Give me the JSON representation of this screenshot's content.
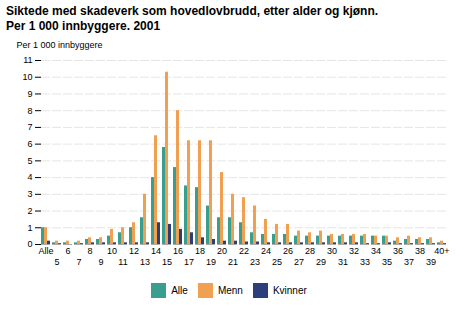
{
  "chart_data": {
    "type": "bar",
    "title": "Siktede med skadeverk som hovedlovbrudd, etter alder og kjønn.",
    "subtitle": "Per 1 000 innbyggere. 2001",
    "ylabel": "Per 1 000 innbyggere",
    "categories": [
      "Alle",
      "5",
      "6",
      "7",
      "8",
      "9",
      "10",
      "11",
      "12",
      "13",
      "14",
      "15",
      "16",
      "17",
      "18",
      "19",
      "20",
      "21",
      "22",
      "23",
      "24",
      "25",
      "26",
      "27",
      "28",
      "29",
      "30",
      "31",
      "32",
      "33",
      "34",
      "35",
      "36",
      "37",
      "38",
      "39",
      "40+"
    ],
    "series": [
      {
        "name": "Alle",
        "color": "#3a9e8f",
        "values": [
          1.0,
          0.1,
          0.1,
          0.1,
          0.3,
          0.3,
          0.5,
          0.7,
          1.0,
          1.6,
          4.0,
          5.8,
          4.6,
          3.5,
          3.4,
          2.3,
          1.6,
          1.6,
          1.3,
          0.7,
          0.6,
          0.6,
          0.6,
          0.5,
          0.5,
          0.5,
          0.5,
          0.5,
          0.5,
          0.5,
          0.5,
          0.5,
          0.2,
          0.3,
          0.3,
          0.3,
          0.1
        ]
      },
      {
        "name": "Menn",
        "color": "#f0a050",
        "values": [
          1.0,
          0.2,
          0.2,
          0.2,
          0.4,
          0.4,
          0.9,
          1.0,
          1.3,
          3.0,
          6.5,
          10.3,
          8.0,
          6.2,
          6.2,
          6.2,
          4.3,
          3.0,
          2.8,
          2.3,
          1.5,
          1.2,
          1.2,
          0.8,
          0.7,
          0.8,
          0.6,
          0.6,
          0.6,
          0.6,
          0.5,
          0.5,
          0.4,
          0.5,
          0.4,
          0.4,
          0.2
        ]
      },
      {
        "name": "Kvinner",
        "color": "#2c3f7a",
        "values": [
          0.2,
          0.05,
          0.0,
          0.05,
          0.1,
          0.1,
          0.1,
          0.1,
          0.1,
          0.1,
          1.3,
          1.2,
          0.9,
          0.7,
          0.4,
          0.3,
          0.2,
          0.2,
          0.15,
          0.15,
          0.1,
          0.1,
          0.1,
          0.1,
          0.1,
          0.1,
          0.1,
          0.1,
          0.1,
          0.05,
          0.05,
          0.1,
          0.05,
          0.05,
          0.05,
          0.05,
          0.05
        ]
      }
    ],
    "ylim": [
      0,
      11
    ],
    "yticks": [
      0,
      1,
      2,
      3,
      4,
      5,
      6,
      7,
      8,
      9,
      10,
      11
    ],
    "grid": true,
    "legend": "bottom"
  }
}
